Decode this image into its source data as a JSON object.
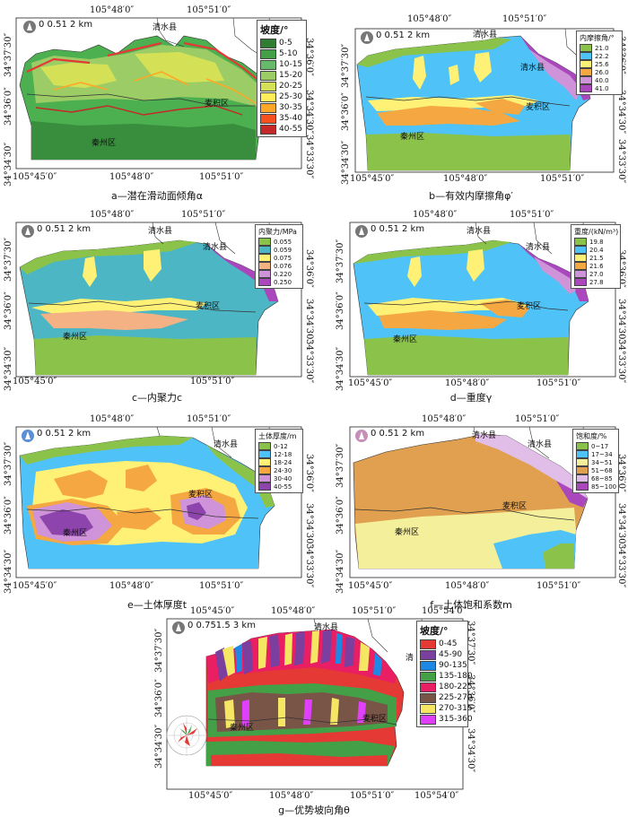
{
  "coords": {
    "lon_105_45": "105°45′0″",
    "lon_105_48": "105°48′0″",
    "lon_105_51": "105°51′0″",
    "lon_105_54": "105°54′0″",
    "lat_37_30": "34°37′30″",
    "lat_36_0": "34°36′0″",
    "lat_34_30": "34°34′30″",
    "lat_33_30": "34°33′30″"
  },
  "places": {
    "qingshui": "清水县",
    "maiji": "麦积区",
    "qinzhou": "秦州区",
    "qingshui_short": "清"
  },
  "scalebar": {
    "std_ticks": "0 0.51  2 km",
    "g_ticks": "0 0.751.5   3 km"
  },
  "panels": {
    "a": {
      "caption": "a—潜在滑动面倾角α",
      "legend_title": "坡度/°",
      "legend": [
        {
          "label": "0-5",
          "color": "#2e7d32"
        },
        {
          "label": "5-10",
          "color": "#43a047"
        },
        {
          "label": "10-15",
          "color": "#66bb6a"
        },
        {
          "label": "15-20",
          "color": "#9ccc65"
        },
        {
          "label": "20-25",
          "color": "#d4e157"
        },
        {
          "label": "25-30",
          "color": "#ffee58"
        },
        {
          "label": "30-35",
          "color": "#ffa726"
        },
        {
          "label": "35-40",
          "color": "#f4511e"
        },
        {
          "label": "40-55",
          "color": "#c62828"
        }
      ]
    },
    "b": {
      "caption": "b—有效内摩擦角φ′",
      "legend_title": "内摩擦角/°",
      "legend": [
        {
          "label": "21.0",
          "color": "#8bc34a"
        },
        {
          "label": "22.2",
          "color": "#4fc3f7"
        },
        {
          "label": "25.6",
          "color": "#fff176"
        },
        {
          "label": "26.0",
          "color": "#f5a742"
        },
        {
          "label": "40.0",
          "color": "#ce93d8"
        },
        {
          "label": "41.0",
          "color": "#ab47bc"
        }
      ]
    },
    "c": {
      "caption": "c—内聚力c",
      "legend_title": "内聚力/MPa",
      "legend": [
        {
          "label": "0.055",
          "color": "#8bc34a"
        },
        {
          "label": "0.059",
          "color": "#4db6c4"
        },
        {
          "label": "0.075",
          "color": "#fff176"
        },
        {
          "label": "0.076",
          "color": "#f4b183"
        },
        {
          "label": "0.220",
          "color": "#ce93d8"
        },
        {
          "label": "0.250",
          "color": "#ab47bc"
        }
      ]
    },
    "d": {
      "caption": "d—重度γ",
      "legend_title": "重度/(kN/m³)",
      "legend": [
        {
          "label": "19.8",
          "color": "#8bc34a"
        },
        {
          "label": "20.4",
          "color": "#4fc3f7"
        },
        {
          "label": "21.5",
          "color": "#fff176"
        },
        {
          "label": "21.6",
          "color": "#f5a742"
        },
        {
          "label": "27.0",
          "color": "#ce93d8"
        },
        {
          "label": "27.8",
          "color": "#ab47bc"
        }
      ]
    },
    "e": {
      "caption": "e—土体厚度t",
      "legend_title": "土体厚度/m",
      "legend": [
        {
          "label": "0-12",
          "color": "#8bc34a"
        },
        {
          "label": "12-18",
          "color": "#4fc3f7"
        },
        {
          "label": "18-24",
          "color": "#fff176"
        },
        {
          "label": "24-30",
          "color": "#f5a742"
        },
        {
          "label": "30-40",
          "color": "#ce93d8"
        },
        {
          "label": "40-55",
          "color": "#8e44ad"
        }
      ]
    },
    "f": {
      "caption": "f—土体饱和系数m",
      "legend_title": "饱和度/%",
      "legend": [
        {
          "label": "0~17",
          "color": "#8bc34a"
        },
        {
          "label": "17~34",
          "color": "#4fc3f7"
        },
        {
          "label": "34~51",
          "color": "#f3ef9a"
        },
        {
          "label": "51~68",
          "color": "#e0a050"
        },
        {
          "label": "68~85",
          "color": "#e1bee7"
        },
        {
          "label": "85~100",
          "color": "#ab47bc"
        }
      ]
    },
    "g": {
      "caption": "g—优势坡向角θ",
      "legend_title": "坡度/°",
      "legend": [
        {
          "label": "0-45",
          "color": "#e53935"
        },
        {
          "label": "45-90",
          "color": "#7b3fa0"
        },
        {
          "label": "90-135",
          "color": "#1e88e5"
        },
        {
          "label": "135-180",
          "color": "#43a047"
        },
        {
          "label": "180-225",
          "color": "#e91e63"
        },
        {
          "label": "225-270",
          "color": "#795548"
        },
        {
          "label": "270-315",
          "color": "#f5e663"
        },
        {
          "label": "315-360",
          "color": "#e040fb"
        }
      ]
    }
  }
}
